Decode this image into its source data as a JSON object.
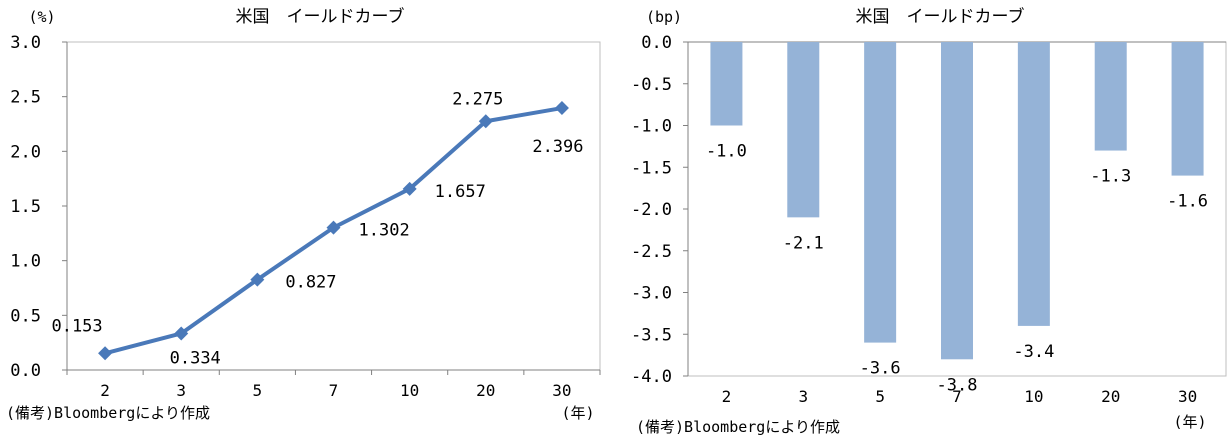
{
  "chart_data": [
    {
      "type": "line",
      "title": "米国　イールドカーブ",
      "unit_label": "(%)",
      "xlabel": "(年)",
      "source_note": "(備考)Bloombergにより作成",
      "categories": [
        "2",
        "3",
        "5",
        "7",
        "10",
        "20",
        "30"
      ],
      "series": [
        {
          "name": "yield",
          "values": [
            0.153,
            0.334,
            0.827,
            1.302,
            1.657,
            2.275,
            2.396
          ]
        }
      ],
      "data_labels": [
        "0.153",
        "0.334",
        "0.827",
        "1.302",
        "1.657",
        "2.275",
        "2.396"
      ],
      "ylim": [
        0.0,
        3.0
      ],
      "yticks": [
        "0.0",
        "0.5",
        "1.0",
        "1.5",
        "2.0",
        "2.5",
        "3.0"
      ],
      "grid": false,
      "legend": "none",
      "color": "#4a79b9"
    },
    {
      "type": "bar",
      "title": "米国　イールドカーブ",
      "unit_label": "(bp)",
      "xlabel": "(年)",
      "source_note": "(備考)Bloombergにより作成",
      "categories": [
        "2",
        "3",
        "5",
        "7",
        "10",
        "20",
        "30"
      ],
      "series": [
        {
          "name": "change",
          "values": [
            -1.0,
            -2.1,
            -3.6,
            -3.8,
            -3.4,
            -1.3,
            -1.6
          ]
        }
      ],
      "data_labels": [
        "-1.0",
        "-2.1",
        "-3.6",
        "-3.8",
        "-3.4",
        "-1.3",
        "-1.6"
      ],
      "ylim": [
        -4.0,
        0.0
      ],
      "yticks": [
        "0.0",
        "-0.5",
        "-1.0",
        "-1.5",
        "-2.0",
        "-2.5",
        "-3.0",
        "-3.5",
        "-4.0"
      ],
      "grid": false,
      "legend": "none",
      "color": "#95b3d7"
    }
  ]
}
